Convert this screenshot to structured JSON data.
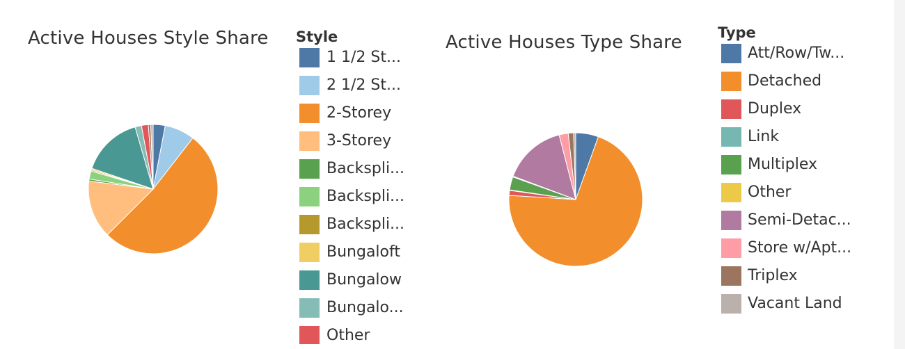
{
  "chart_data": [
    {
      "type": "pie",
      "title": "Active Houses Style Share",
      "legend_title": "Style",
      "legend_placement": "right",
      "legend": [
        {
          "label": "1 1/2 St...",
          "color": "#4e79a7"
        },
        {
          "label": "2 1/2 St...",
          "color": "#a0cbe8"
        },
        {
          "label": "2-Storey",
          "color": "#f28e2b"
        },
        {
          "label": "3-Storey",
          "color": "#ffbe7d"
        },
        {
          "label": "Backspli...",
          "color": "#59a14f"
        },
        {
          "label": "Backspli...",
          "color": "#8cd17d"
        },
        {
          "label": "Backspli...",
          "color": "#b6992d"
        },
        {
          "label": "Bungaloft",
          "color": "#f1ce63"
        },
        {
          "label": "Bungalow",
          "color": "#499894"
        },
        {
          "label": "Bungalo...",
          "color": "#86bcb6"
        },
        {
          "label": "Other",
          "color": "#e15759"
        }
      ],
      "slices": [
        {
          "label": "1 1/2 St...",
          "value": 3.0,
          "color": "#4e79a7"
        },
        {
          "label": "2 1/2 St...",
          "value": 7.5,
          "color": "#a0cbe8"
        },
        {
          "label": "2-Storey",
          "value": 52.0,
          "color": "#f28e2b"
        },
        {
          "label": "3-Storey",
          "value": 14.5,
          "color": "#ffbe7d"
        },
        {
          "label": "Backspli...",
          "value": 0.5,
          "color": "#59a14f"
        },
        {
          "label": "Backspli...",
          "value": 2.0,
          "color": "#8cd17d"
        },
        {
          "label": "Backspli...",
          "value": 0.3,
          "color": "#b6992d"
        },
        {
          "label": "Bungaloft",
          "value": 0.4,
          "color": "#f1ce63"
        },
        {
          "label": "Bungalow",
          "value": 15.3,
          "color": "#499894"
        },
        {
          "label": "Bungalo...",
          "value": 1.6,
          "color": "#86bcb6"
        },
        {
          "label": "Other",
          "value": 1.7,
          "color": "#e15759"
        },
        {
          "label": "",
          "value": 0.6,
          "color": "#9d7660"
        },
        {
          "label": "",
          "value": 0.6,
          "color": "#bab0ac"
        }
      ]
    },
    {
      "type": "pie",
      "title": "Active Houses Type Share",
      "legend_title": "Type",
      "legend_placement": "right",
      "legend": [
        {
          "label": "Att/Row/Tw...",
          "color": "#4e79a7"
        },
        {
          "label": "Detached",
          "color": "#f28e2b"
        },
        {
          "label": "Duplex",
          "color": "#e15759"
        },
        {
          "label": "Link",
          "color": "#76b7b2"
        },
        {
          "label": "Multiplex",
          "color": "#59a14f"
        },
        {
          "label": "Other",
          "color": "#edc948"
        },
        {
          "label": "Semi-Detac...",
          "color": "#b07aa1"
        },
        {
          "label": "Store w/Apt...",
          "color": "#ff9da7"
        },
        {
          "label": "Triplex",
          "color": "#9c755f"
        },
        {
          "label": "Vacant Land",
          "color": "#bab0ac"
        }
      ],
      "slices": [
        {
          "label": "Att/Row/Tw...",
          "value": 5.5,
          "color": "#4e79a7"
        },
        {
          "label": "Detached",
          "value": 70.5,
          "color": "#f28e2b"
        },
        {
          "label": "Duplex",
          "value": 1.2,
          "color": "#e15759"
        },
        {
          "label": "Link",
          "value": 0.1,
          "color": "#76b7b2"
        },
        {
          "label": "Multiplex",
          "value": 3.2,
          "color": "#59a14f"
        },
        {
          "label": "Other",
          "value": 0.2,
          "color": "#edc948"
        },
        {
          "label": "Semi-Detac...",
          "value": 15.3,
          "color": "#b07aa1"
        },
        {
          "label": "Store w/Apt...",
          "value": 2.2,
          "color": "#ff9da7"
        },
        {
          "label": "Triplex",
          "value": 1.3,
          "color": "#9c755f"
        },
        {
          "label": "Vacant Land",
          "value": 0.5,
          "color": "#bab0ac"
        }
      ]
    }
  ]
}
